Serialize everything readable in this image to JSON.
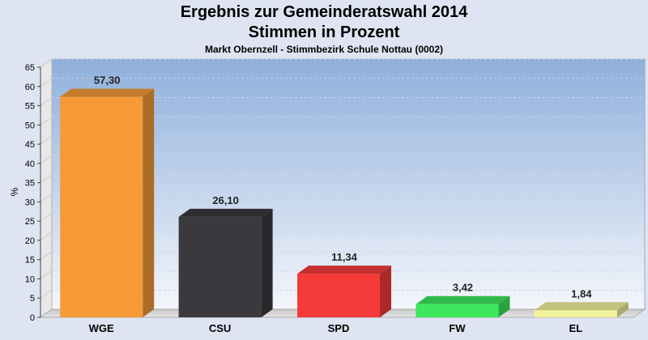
{
  "chart_data": {
    "type": "bar",
    "title": "Ergebnis zur Gemeinderatswahl 2014",
    "subtitle": "Stimmen in Prozent",
    "caption": "Markt Obernzell - Stimmbezirk Schule Nottau (0002)",
    "xlabel": "",
    "ylabel": "%",
    "ylim": [
      0,
      65
    ],
    "yticks": [
      "0",
      "5",
      "10",
      "15",
      "20",
      "25",
      "30",
      "35",
      "40",
      "45",
      "50",
      "55",
      "60",
      "65"
    ],
    "categories": [
      "WGE",
      "CSU",
      "SPD",
      "FW",
      "EL"
    ],
    "values": [
      57.3,
      26.1,
      11.34,
      3.42,
      1.84
    ],
    "value_labels": [
      "57,30",
      "26,10",
      "11,34",
      "3,42",
      "1,84"
    ],
    "colors": [
      "#f59a36",
      "#3a3a3e",
      "#f53a3a",
      "#3ce85c",
      "#f2f29a"
    ],
    "grid": true,
    "legend": "none"
  }
}
